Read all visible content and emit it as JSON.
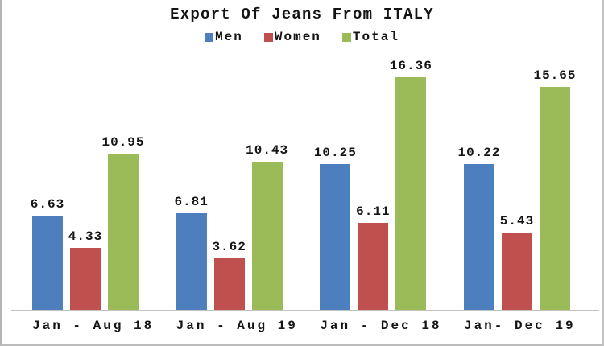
{
  "title": "Export Of Jeans From ITALY",
  "colors": {
    "men": "#4d7ebd",
    "women": "#c0504d",
    "total": "#9bbb59",
    "axis": "#c3c3c3",
    "frame": "#bcbcbc",
    "text": "#141414"
  },
  "chart_data": {
    "type": "bar",
    "title": "Export Of Jeans From ITALY",
    "categories": [
      "Jan - Aug 18",
      "Jan - Aug 19",
      "Jan - Dec 18",
      "Jan- Dec 19"
    ],
    "series": [
      {
        "name": "Men",
        "color": "#4d7ebd",
        "values": [
          6.63,
          6.81,
          10.25,
          10.22
        ]
      },
      {
        "name": "Women",
        "color": "#c0504d",
        "values": [
          4.33,
          3.62,
          6.11,
          5.43
        ]
      },
      {
        "name": "Total",
        "color": "#9bbb59",
        "values": [
          10.95,
          10.43,
          16.36,
          15.65
        ]
      }
    ],
    "xlabel": "",
    "ylabel": "",
    "ylim": [
      0,
      18.6
    ],
    "grid": false,
    "y_axis_visible": false,
    "legend_position": "top",
    "data_labels": true,
    "data_label_decimals": 2
  }
}
